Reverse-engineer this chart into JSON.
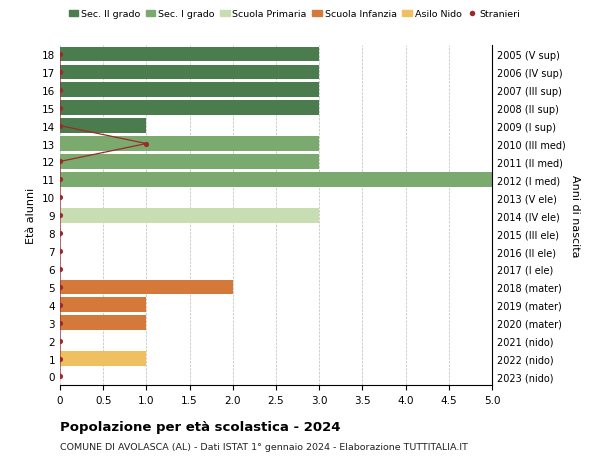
{
  "ages": [
    18,
    17,
    16,
    15,
    14,
    13,
    12,
    11,
    10,
    9,
    8,
    7,
    6,
    5,
    4,
    3,
    2,
    1,
    0
  ],
  "right_labels": [
    "2005 (V sup)",
    "2006 (IV sup)",
    "2007 (III sup)",
    "2008 (II sup)",
    "2009 (I sup)",
    "2010 (III med)",
    "2011 (II med)",
    "2012 (I med)",
    "2013 (V ele)",
    "2014 (IV ele)",
    "2015 (III ele)",
    "2016 (II ele)",
    "2017 (I ele)",
    "2018 (mater)",
    "2019 (mater)",
    "2020 (mater)",
    "2021 (nido)",
    "2022 (nido)",
    "2023 (nido)"
  ],
  "sec2_values": [
    3,
    3,
    3,
    3,
    1,
    0,
    0,
    0,
    0,
    0,
    0,
    0,
    0,
    0,
    0,
    0,
    0,
    0,
    0
  ],
  "sec1_values": [
    0,
    0,
    0,
    0,
    0,
    3,
    3,
    5,
    0,
    0,
    0,
    0,
    0,
    0,
    0,
    0,
    0,
    0,
    0
  ],
  "primaria_values": [
    0,
    0,
    0,
    0,
    0,
    0,
    0,
    0,
    0,
    3,
    0,
    0,
    0,
    0,
    0,
    0,
    0,
    0,
    0
  ],
  "infanzia_values": [
    0,
    0,
    0,
    0,
    0,
    0,
    0,
    0,
    0,
    0,
    0,
    0,
    0,
    2,
    1,
    1,
    0,
    0,
    0
  ],
  "nido_values": [
    0,
    0,
    0,
    0,
    0,
    0,
    0,
    0,
    0,
    0,
    0,
    0,
    0,
    0,
    0,
    0,
    0,
    1,
    0
  ],
  "stranieri_line_ages": [
    18,
    17,
    16,
    15,
    14,
    13,
    12,
    11,
    10,
    9,
    8,
    7,
    6,
    5,
    4,
    3,
    2,
    1,
    0
  ],
  "stranieri_line_vals": [
    0,
    0,
    0,
    0,
    0,
    1,
    0,
    0,
    0,
    0,
    0,
    0,
    0,
    0,
    0,
    0,
    0,
    0,
    0
  ],
  "color_sec2": "#4a7c4e",
  "color_sec1": "#7aaa6e",
  "color_primaria": "#c8deb2",
  "color_infanzia": "#d4793a",
  "color_nido": "#f0c060",
  "color_stranieri": "#9b2a2a",
  "ylabel_left": "Età alunni",
  "ylabel_right": "Anni di nascita",
  "title": "Popolazione per età scolastica - 2024",
  "subtitle": "COMUNE DI AVOLASCA (AL) - Dati ISTAT 1° gennaio 2024 - Elaborazione TUTTITALIA.IT",
  "xlim": [
    0,
    5.0
  ],
  "bar_height": 0.82,
  "legend_labels": [
    "Sec. II grado",
    "Sec. I grado",
    "Scuola Primaria",
    "Scuola Infanzia",
    "Asilo Nido",
    "Stranieri"
  ]
}
